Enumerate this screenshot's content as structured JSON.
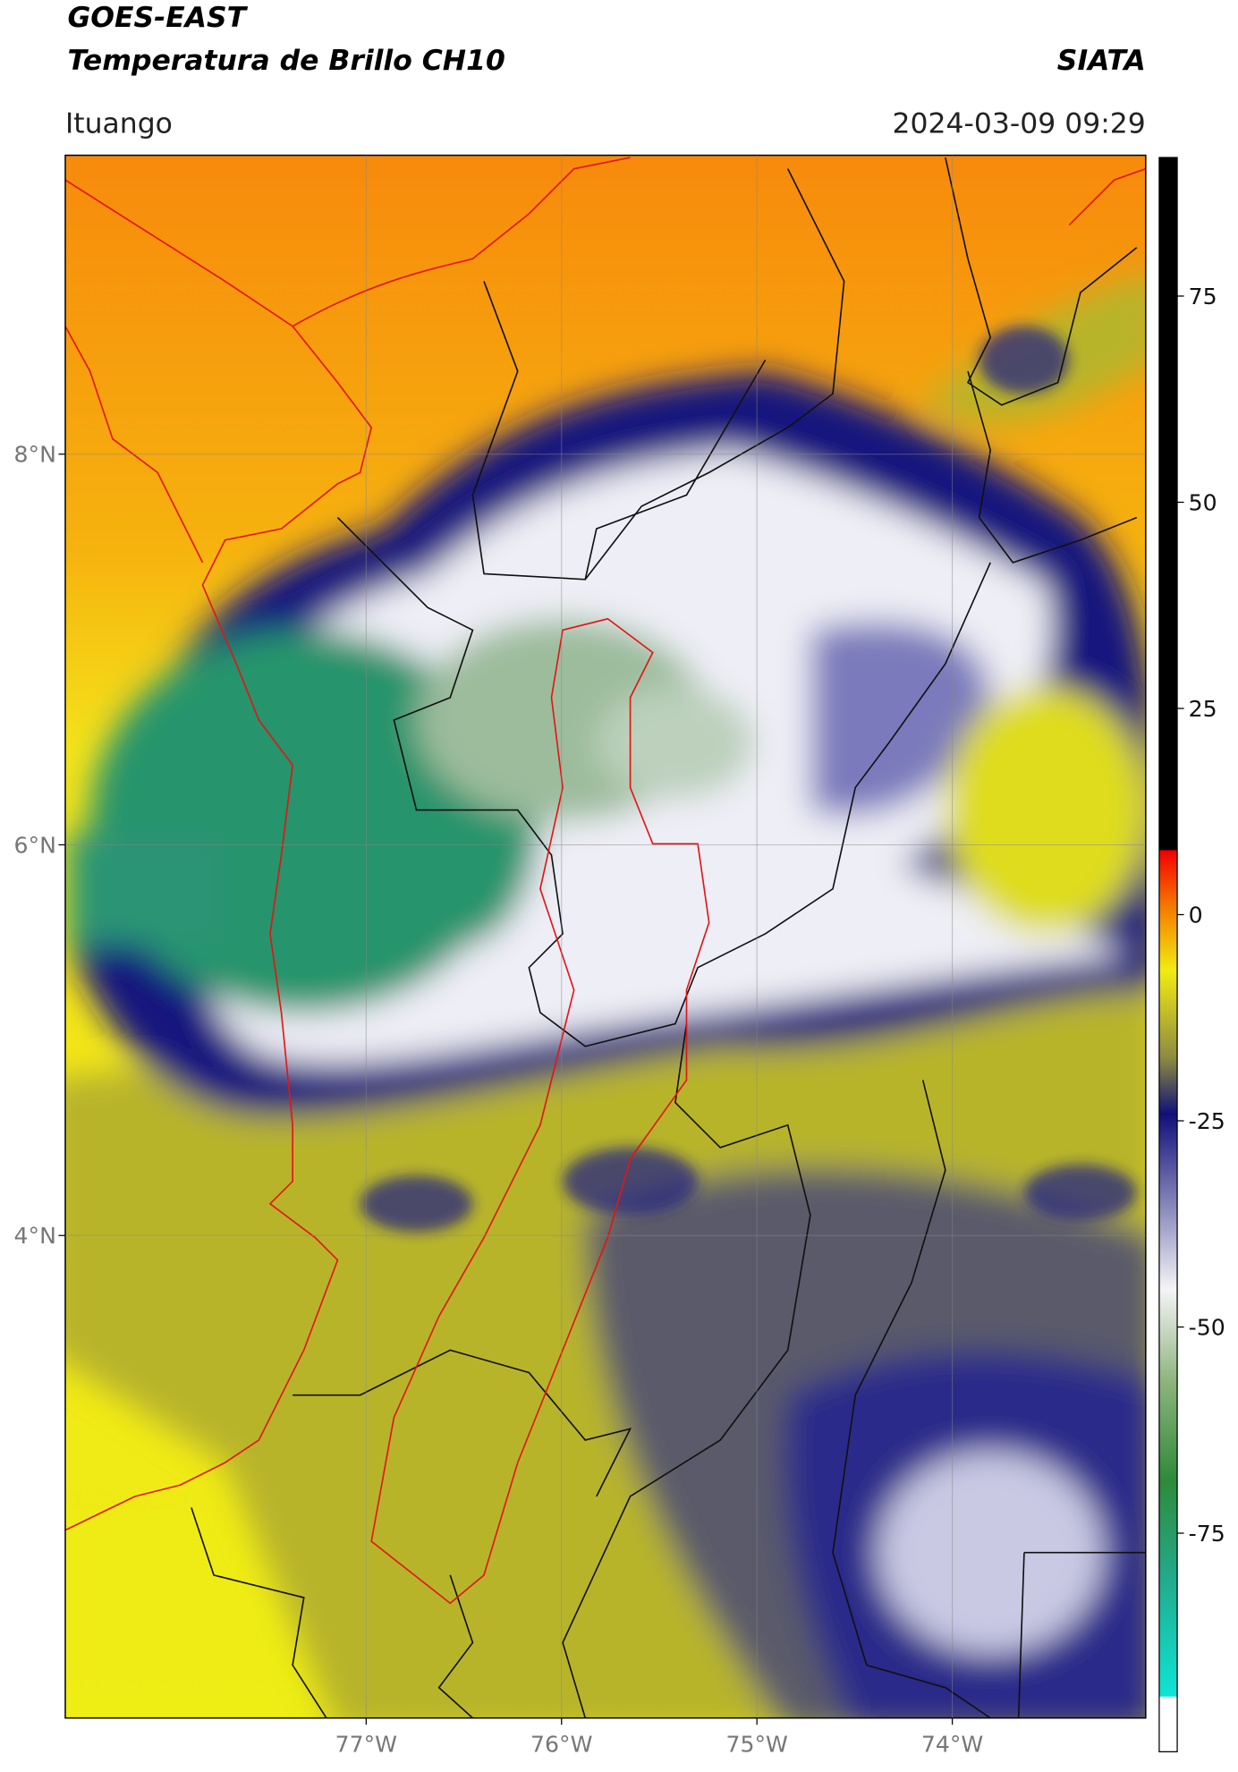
{
  "header": {
    "source": "GOES-EAST",
    "product": "Temperatura de Brillo CH10",
    "agency": "SIATA",
    "region": "Ituango",
    "datetime": "2024-03-09 09:29"
  },
  "map": {
    "lonlim": [
      -78.54,
      -73.01
    ],
    "latlim": [
      1.53,
      9.53
    ],
    "lat_ticks": [
      {
        "value": 8,
        "label": "8°N"
      },
      {
        "value": 6,
        "label": "6°N"
      },
      {
        "value": 4,
        "label": "4°N"
      }
    ],
    "lon_ticks": [
      {
        "value": -77,
        "label": "77°W"
      },
      {
        "value": -76,
        "label": "76°W"
      },
      {
        "value": -75,
        "label": "75°W"
      },
      {
        "value": -74,
        "label": "74°W"
      }
    ]
  },
  "colorbar": {
    "clim": [
      -101.5,
      91.8
    ],
    "ticks": [
      75,
      50,
      25,
      0,
      -25,
      -50,
      -75
    ]
  }
}
